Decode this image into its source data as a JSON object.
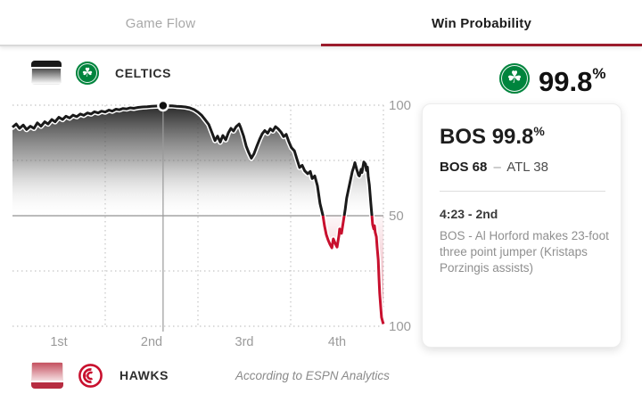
{
  "tabs": {
    "game_flow": "Game Flow",
    "win_probability": "Win Probability"
  },
  "header": {
    "home_team": "CELTICS",
    "win_pct_value": "99.8",
    "pct_sign": "%"
  },
  "footer": {
    "away_team": "HAWKS",
    "attribution": "According to ESPN Analytics"
  },
  "tooltip": {
    "title_team": "BOS",
    "title_pct": "99.8",
    "pct_sign": "%",
    "score_home": "BOS 68",
    "score_dash": "–",
    "score_away": "ATL 38",
    "time": "4:23 - 2nd",
    "play": "BOS - Al Horford makes 23-foot three point jumper (Kristaps Porzingis assists)"
  },
  "icons": {
    "celtics_logo_glyph": "☘",
    "celtics_green": "#00843d",
    "hawks_red": "#c8102e",
    "bos_swatch": "black-gradient-area",
    "atl_swatch": "red-gradient-area"
  },
  "chart_data": {
    "type": "line",
    "title": "Win Probability",
    "x_axis": {
      "tick_labels": [
        "1st",
        "2nd",
        "3rd",
        "4th"
      ],
      "range_pct": [
        0,
        100
      ],
      "quarter_boundaries_pct": [
        25,
        50,
        75,
        100
      ]
    },
    "y_axis": {
      "top_label": "100",
      "mid_label": "50",
      "bottom_label": "100",
      "top_value": 100,
      "mid_value": 50,
      "bottom_value": 0,
      "note": "BOS win % above midline, ATL win % below midline",
      "dotted_levels": [
        100,
        75,
        25,
        0
      ]
    },
    "grid": true,
    "legend_position": "top-left / bottom-left team rows",
    "hover_point": {
      "t_pct": 40.6,
      "bos_win_pct": 99.8
    },
    "colors": {
      "bos_line": "#1a1a1a",
      "atl_line": "#c8102e",
      "grid": "#c5c5c5",
      "midline": "#8f8f8f",
      "axis_text": "#9b9b9b"
    },
    "series": [
      {
        "name": "BOS win probability",
        "points": [
          [
            0,
            90
          ],
          [
            1,
            91.5
          ],
          [
            1.9,
            89.5
          ],
          [
            2.9,
            91
          ],
          [
            3.8,
            89
          ],
          [
            4.8,
            90.5
          ],
          [
            5.8,
            89.5
          ],
          [
            6.7,
            92
          ],
          [
            7.7,
            90.5
          ],
          [
            8.7,
            92.5
          ],
          [
            9.6,
            91.5
          ],
          [
            10.6,
            93.5
          ],
          [
            11.5,
            92.5
          ],
          [
            12.5,
            94.5
          ],
          [
            13.5,
            93.5
          ],
          [
            14.4,
            95
          ],
          [
            15.4,
            94.2
          ],
          [
            16.3,
            95.5
          ],
          [
            17.3,
            94.8
          ],
          [
            18.3,
            96
          ],
          [
            19.2,
            95.4
          ],
          [
            20.2,
            96.5
          ],
          [
            21.2,
            96
          ],
          [
            22.1,
            97
          ],
          [
            23.1,
            96.5
          ],
          [
            24,
            97.3
          ],
          [
            25,
            96.9
          ],
          [
            26,
            97.8
          ],
          [
            26.9,
            97.3
          ],
          [
            27.9,
            98.2
          ],
          [
            28.8,
            97.9
          ],
          [
            29.8,
            98.5
          ],
          [
            30.8,
            98.3
          ],
          [
            31.7,
            98.8
          ],
          [
            32.7,
            98.6
          ],
          [
            33.9,
            99
          ],
          [
            35.1,
            99.2
          ],
          [
            36.3,
            99.3
          ],
          [
            37.5,
            99.5
          ],
          [
            38.7,
            99.6
          ],
          [
            39.9,
            99.7
          ],
          [
            40.6,
            99.8
          ],
          [
            41.8,
            99.7
          ],
          [
            43,
            99.7
          ],
          [
            44.2,
            99.5
          ],
          [
            45.4,
            99.4
          ],
          [
            46.6,
            99.2
          ],
          [
            47.8,
            98.8
          ],
          [
            49,
            98
          ],
          [
            50,
            96.9
          ],
          [
            51,
            95.4
          ],
          [
            51.9,
            93.5
          ],
          [
            52.9,
            91.3
          ],
          [
            53.8,
            87.5
          ],
          [
            54.6,
            84
          ],
          [
            55.3,
            86
          ],
          [
            56,
            83.3
          ],
          [
            56.7,
            86.3
          ],
          [
            57.5,
            84.3
          ],
          [
            58.2,
            87.5
          ],
          [
            58.9,
            89.5
          ],
          [
            59.6,
            88.3
          ],
          [
            60.3,
            90.3
          ],
          [
            61.1,
            91.5
          ],
          [
            61.5,
            90
          ],
          [
            62.3,
            86
          ],
          [
            63,
            81.5
          ],
          [
            63.7,
            78.5
          ],
          [
            64.4,
            76
          ],
          [
            65.1,
            78
          ],
          [
            65.9,
            81.5
          ],
          [
            66.6,
            84.5
          ],
          [
            67.3,
            87
          ],
          [
            68,
            88.5
          ],
          [
            68.8,
            87.3
          ],
          [
            69.5,
            89.3
          ],
          [
            70.2,
            88.3
          ],
          [
            70.9,
            90.3
          ],
          [
            71.6,
            89.3
          ],
          [
            72.4,
            87.8
          ],
          [
            73.1,
            85.8
          ],
          [
            73.8,
            86.8
          ],
          [
            74.5,
            83.5
          ],
          [
            75.2,
            80.8
          ],
          [
            76,
            79.3
          ],
          [
            76.7,
            75.5
          ],
          [
            77.4,
            71.8
          ],
          [
            78.1,
            72.8
          ],
          [
            78.8,
            70.3
          ],
          [
            79.6,
            69
          ],
          [
            80.3,
            70
          ],
          [
            80.8,
            66.8
          ],
          [
            81.5,
            68
          ],
          [
            82.2,
            63.5
          ],
          [
            82.9,
            55.5
          ],
          [
            83.7,
            50
          ],
          [
            84.1,
            45.5
          ],
          [
            84.6,
            41.5
          ],
          [
            85.1,
            39
          ],
          [
            85.6,
            37
          ],
          [
            86.1,
            35.5
          ],
          [
            86.5,
            39.5
          ],
          [
            87,
            37.5
          ],
          [
            87.5,
            35.8
          ],
          [
            88,
            41
          ],
          [
            88.2,
            44
          ],
          [
            88.7,
            42
          ],
          [
            89.2,
            47.5
          ],
          [
            89.7,
            53
          ],
          [
            90.1,
            58
          ],
          [
            90.6,
            62
          ],
          [
            91.1,
            66
          ],
          [
            91.6,
            70
          ],
          [
            92.1,
            72.5
          ],
          [
            92.3,
            74
          ],
          [
            92.8,
            71
          ],
          [
            93.3,
            68.3
          ],
          [
            93.5,
            68
          ],
          [
            94,
            71
          ],
          [
            94.2,
            69.5
          ],
          [
            94.7,
            74.3
          ],
          [
            95.2,
            73.3
          ],
          [
            95.4,
            70.5
          ],
          [
            95.7,
            72
          ],
          [
            95.9,
            68
          ],
          [
            96.2,
            64
          ],
          [
            96.4,
            60
          ],
          [
            96.6,
            55.5
          ],
          [
            96.9,
            50
          ],
          [
            97.1,
            46
          ],
          [
            97.4,
            44
          ],
          [
            97.6,
            45.5
          ],
          [
            97.8,
            42.5
          ],
          [
            98.1,
            40.5
          ],
          [
            98.3,
            36
          ],
          [
            98.6,
            30
          ],
          [
            98.8,
            22
          ],
          [
            99,
            15
          ],
          [
            99.3,
            8
          ],
          [
            99.5,
            4
          ],
          [
            99.8,
            2
          ],
          [
            100,
            1
          ]
        ]
      }
    ]
  }
}
